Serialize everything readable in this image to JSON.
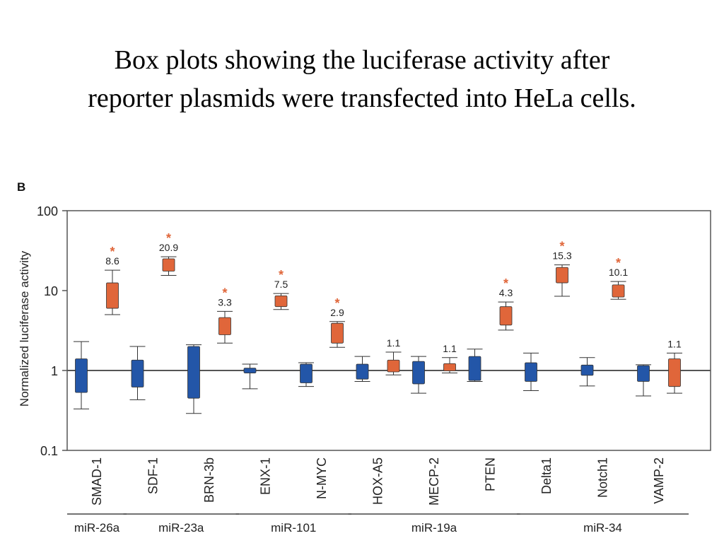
{
  "slide": {
    "title_line1": "Box plots showing the luciferase activity after",
    "title_line2": "reporter plasmids were transfected into HeLa cells."
  },
  "colors": {
    "control": "#2356a8",
    "mirna": "#e0663a",
    "star": "#e0663a"
  },
  "chart_data": {
    "type": "box",
    "panel_label": "B",
    "ylabel": "Normalized luciferase activity",
    "yscale": "log",
    "ylim": [
      0.1,
      100
    ],
    "yticks": [
      {
        "v": 100,
        "label": "100"
      },
      {
        "v": 10,
        "label": "10"
      },
      {
        "v": 1,
        "label": "1"
      },
      {
        "v": 0.1,
        "label": "0.1"
      }
    ],
    "reference_line": 1,
    "categories": [
      "SMAD-1",
      "SDF-1",
      "BRN-3b",
      "ENX-1",
      "N-MYC",
      "HOX-A5",
      "MECP-2",
      "PTEN",
      "Delta1",
      "Notch1",
      "VAMP-2"
    ],
    "groups": [
      {
        "name": "miR-26a",
        "members": [
          "SMAD-1"
        ]
      },
      {
        "name": "miR-23a",
        "members": [
          "SDF-1",
          "BRN-3b"
        ]
      },
      {
        "name": "miR-101",
        "members": [
          "ENX-1",
          "N-MYC"
        ]
      },
      {
        "name": "miR-19a",
        "members": [
          "HOX-A5",
          "MECP-2",
          "PTEN"
        ]
      },
      {
        "name": "miR-34",
        "members": [
          "Delta1",
          "Notch1",
          "VAMP-2"
        ]
      }
    ],
    "boxes": [
      {
        "cat": "SMAD-1",
        "series": "control",
        "whislo": 0.33,
        "q1": 0.53,
        "q3": 1.4,
        "whishi": 2.3
      },
      {
        "cat": "SMAD-1",
        "series": "mirna",
        "whislo": 5.0,
        "q1": 6.0,
        "q3": 12.5,
        "whishi": 18.0,
        "label": "8.6",
        "significant": true
      },
      {
        "cat": "SDF-1",
        "series": "control",
        "whislo": 0.43,
        "q1": 0.62,
        "q3": 1.35,
        "whishi": 2.0
      },
      {
        "cat": "SDF-1",
        "series": "mirna",
        "whislo": 15.5,
        "q1": 17.5,
        "q3": 25.0,
        "whishi": 26.5,
        "label": "20.9",
        "significant": true
      },
      {
        "cat": "BRN-3b",
        "series": "control",
        "whislo": 0.29,
        "q1": 0.45,
        "q3": 2.0,
        "whishi": 2.1
      },
      {
        "cat": "BRN-3b",
        "series": "mirna",
        "whislo": 2.2,
        "q1": 2.8,
        "q3": 4.6,
        "whishi": 5.5,
        "label": "3.3",
        "significant": true
      },
      {
        "cat": "ENX-1",
        "series": "control",
        "whislo": 0.59,
        "q1": 0.93,
        "q3": 1.07,
        "whishi": 1.2
      },
      {
        "cat": "ENX-1",
        "series": "mirna",
        "whislo": 5.8,
        "q1": 6.3,
        "q3": 8.6,
        "whishi": 9.2,
        "label": "7.5",
        "significant": true
      },
      {
        "cat": "N-MYC",
        "series": "control",
        "whislo": 0.63,
        "q1": 0.7,
        "q3": 1.2,
        "whishi": 1.25
      },
      {
        "cat": "N-MYC",
        "series": "mirna",
        "whislo": 1.95,
        "q1": 2.2,
        "q3": 3.9,
        "whishi": 4.1,
        "label": "2.9",
        "significant": true
      },
      {
        "cat": "HOX-A5",
        "series": "control",
        "whislo": 0.73,
        "q1": 0.78,
        "q3": 1.2,
        "whishi": 1.5
      },
      {
        "cat": "HOX-A5",
        "series": "mirna",
        "whislo": 0.88,
        "q1": 0.96,
        "q3": 1.35,
        "whishi": 1.7,
        "label": "1.1",
        "significant": false
      },
      {
        "cat": "MECP-2",
        "series": "control",
        "whislo": 0.52,
        "q1": 0.68,
        "q3": 1.3,
        "whishi": 1.5
      },
      {
        "cat": "MECP-2",
        "series": "mirna",
        "whislo": 0.93,
        "q1": 0.99,
        "q3": 1.22,
        "whishi": 1.45,
        "label": "1.1",
        "significant": false
      },
      {
        "cat": "PTEN",
        "series": "control",
        "whislo": 0.73,
        "q1": 0.75,
        "q3": 1.5,
        "whishi": 1.85
      },
      {
        "cat": "PTEN",
        "series": "mirna",
        "whislo": 3.2,
        "q1": 3.7,
        "q3": 6.3,
        "whishi": 7.2,
        "label": "4.3",
        "significant": true
      },
      {
        "cat": "Delta1",
        "series": "control",
        "whislo": 0.56,
        "q1": 0.73,
        "q3": 1.25,
        "whishi": 1.65
      },
      {
        "cat": "Delta1",
        "series": "mirna",
        "whislo": 8.5,
        "q1": 12.5,
        "q3": 19.5,
        "whishi": 21.0,
        "label": "15.3",
        "significant": true
      },
      {
        "cat": "Notch1",
        "series": "control",
        "whislo": 0.64,
        "q1": 0.87,
        "q3": 1.17,
        "whishi": 1.45
      },
      {
        "cat": "Notch1",
        "series": "mirna",
        "whislo": 7.8,
        "q1": 8.3,
        "q3": 11.8,
        "whishi": 13.0,
        "label": "10.1",
        "significant": true
      },
      {
        "cat": "VAMP-2",
        "series": "control",
        "whislo": 0.48,
        "q1": 0.73,
        "q3": 1.15,
        "whishi": 1.18
      },
      {
        "cat": "VAMP-2",
        "series": "mirna",
        "whislo": 0.52,
        "q1": 0.63,
        "q3": 1.4,
        "whishi": 1.65,
        "label": "1.1",
        "significant": false
      }
    ]
  }
}
